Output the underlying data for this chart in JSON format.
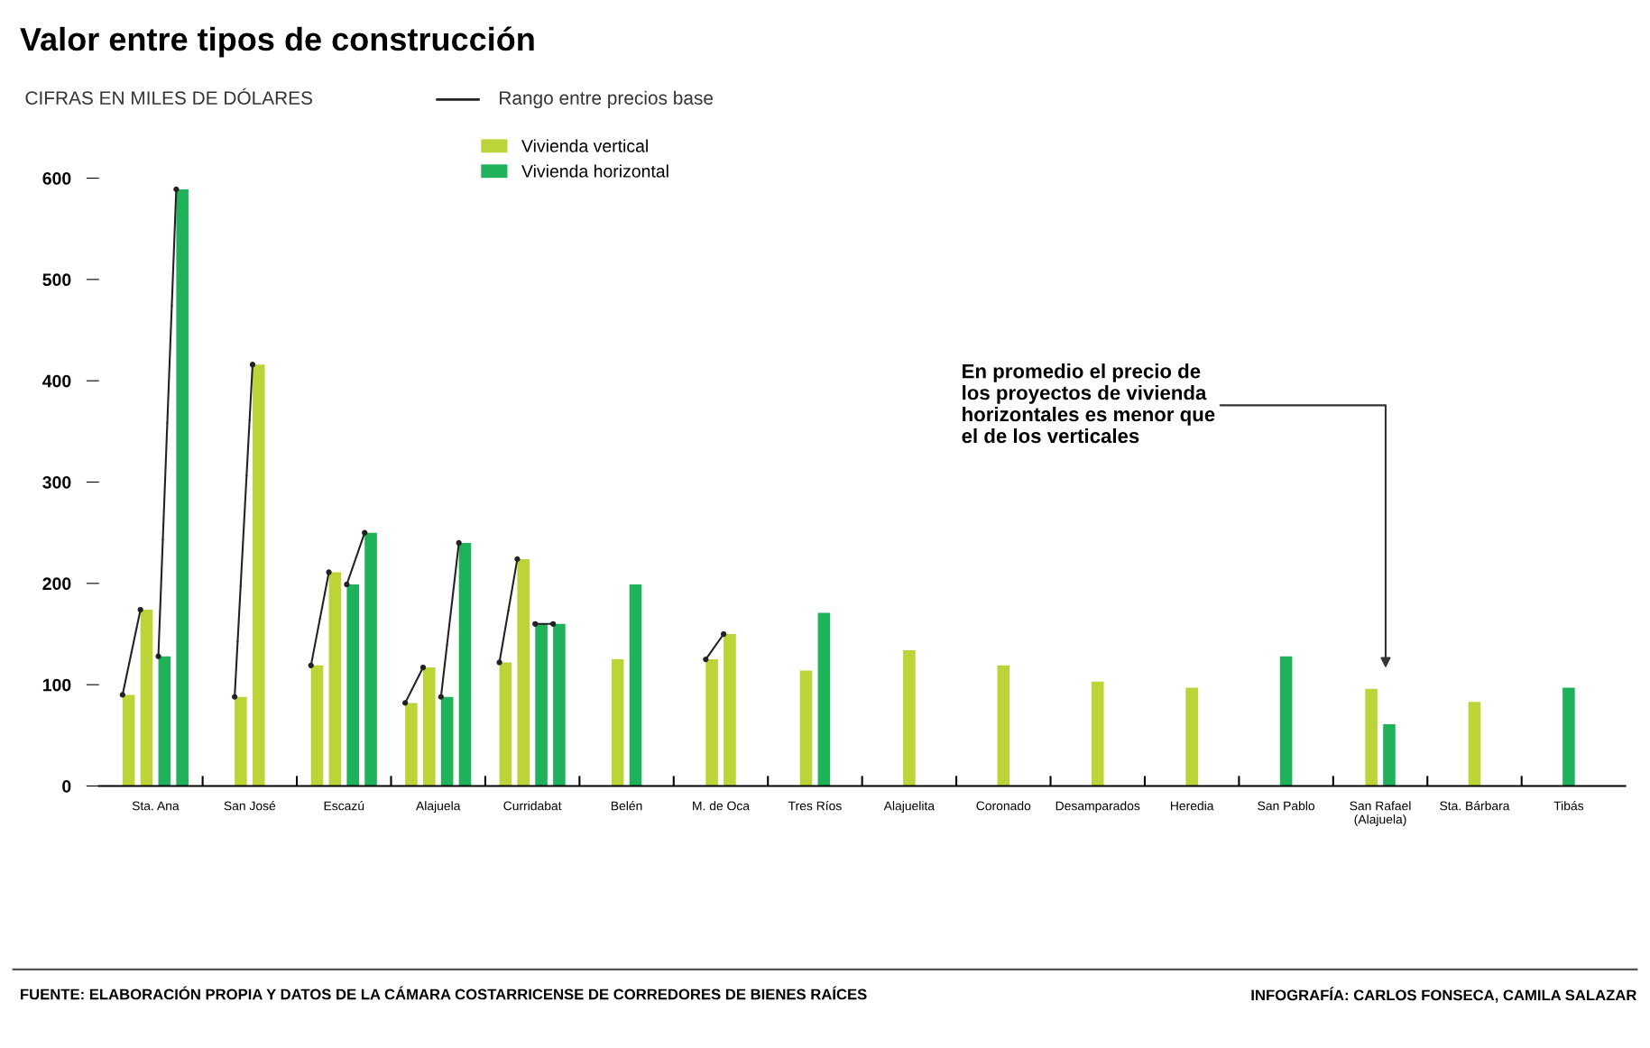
{
  "chart_data": {
    "type": "bar",
    "title": "Valor entre tipos de construcción",
    "subtitle": "CIFRAS EN MILES DE DÓLARES",
    "categories": [
      "Sta. Ana",
      "San José",
      "Escazú",
      "Alajuela",
      "Curridabat",
      "Belén",
      "M. de Oca",
      "Tres Ríos",
      "Alajuelita",
      "Coronado",
      "Desamparados",
      "Heredia",
      "San Pablo",
      "San Rafael\n(Alajuela)",
      "Sta. Bárbara",
      "Tibás"
    ],
    "series": [
      {
        "name": "Vivienda vertical",
        "color": "#bcd437",
        "values": [
          90,
          88,
          119,
          82,
          122,
          125,
          125,
          114,
          134,
          119,
          103,
          97,
          null,
          96,
          83,
          null
        ]
      },
      {
        "color": "#bcd437",
        "values": [
          174,
          416,
          211,
          117,
          224,
          null,
          150,
          null,
          null,
          null,
          null,
          null,
          null,
          null,
          null,
          null
        ]
      },
      {
        "name": "Vivienda horizontal",
        "color": "#1fb25a",
        "values": [
          128,
          null,
          199,
          88,
          160,
          199,
          null,
          171,
          null,
          null,
          null,
          null,
          128,
          61,
          null,
          97
        ]
      },
      {
        "color": "#1fb25a",
        "values": [
          589,
          null,
          250,
          240,
          160,
          null,
          null,
          null,
          null,
          null,
          null,
          null,
          null,
          null,
          null,
          null
        ]
      }
    ],
    "ylim": [
      0,
      600
    ],
    "yticks": [
      0,
      100,
      200,
      300,
      400,
      500,
      600
    ],
    "legend": "top left",
    "grid": false,
    "annotations": [
      "Rango entre precios base",
      "En promedio el precio de\nlos proyectos de vivienda\nhorizontales es menor que\nel de los verticales",
      "FUENTE: ELABORACIÓN PROPIA Y DATOS DE LA CÁMARA COSTARRICENSE DE CORREDORES DE BIENES RAÍCES",
      "INFOGRAFÍA: CARLOS FONSECA, CAMILA SALAZAR"
    ]
  }
}
